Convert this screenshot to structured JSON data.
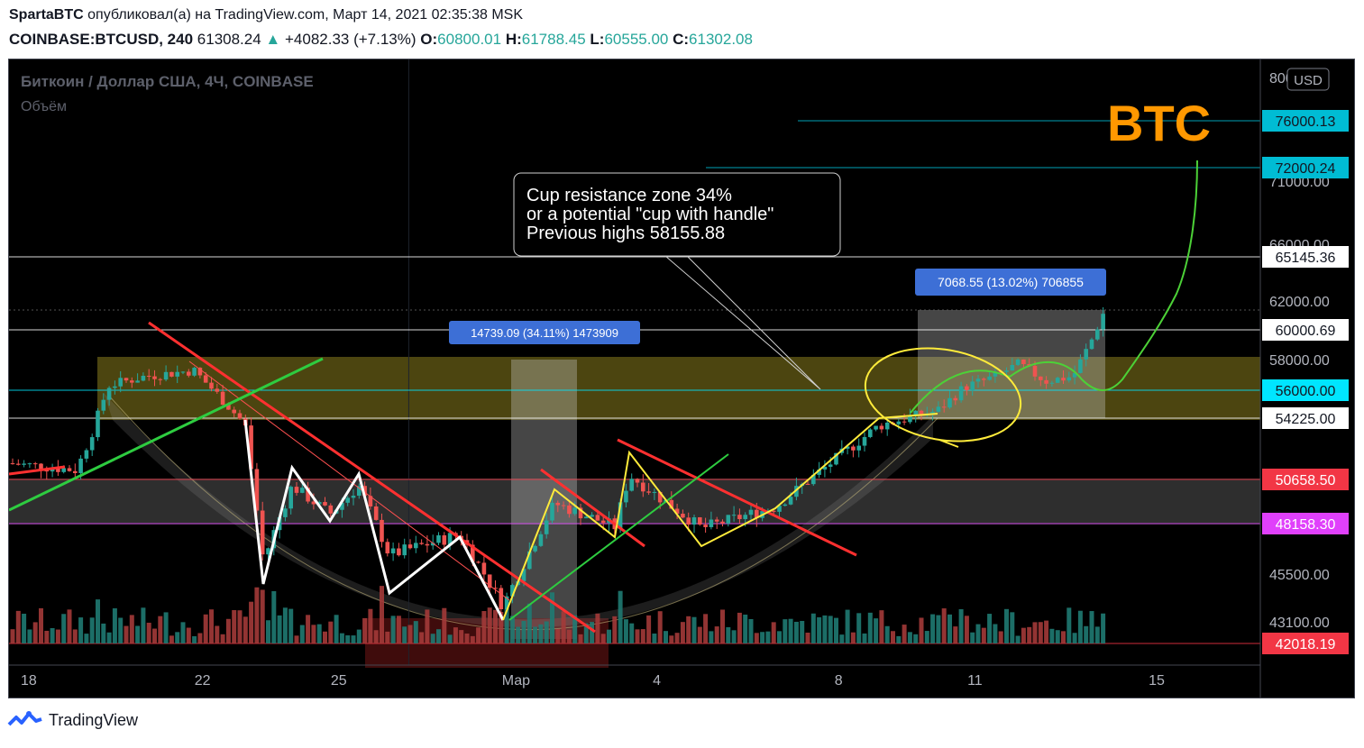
{
  "header": {
    "author": "SpartaBTC",
    "published_text": "опубликовал(а) на TradingView.com, Март 14, 2021 02:35:38 MSK",
    "symbol": "COINBASE:BTCUSD, 240",
    "price": "61308.24",
    "change": "+4082.33 (+7.13%)",
    "o_label": "O:",
    "o_value": "60800.01",
    "h_label": "H:",
    "h_value": "61788.45",
    "l_label": "L:",
    "l_value": "60555.00",
    "c_label": "C:",
    "c_value": "61302.08"
  },
  "chart_data": {
    "type": "candlestick",
    "title": "Биткоин / Доллар США, 4Ч, COINBASE",
    "subtitle": "Объём",
    "currency_label": "USD",
    "big_label": "BTC",
    "x_tick_labels": [
      {
        "label": "18",
        "day": 18
      },
      {
        "label": "22",
        "day": 22
      },
      {
        "label": "25",
        "day": 25
      },
      {
        "label": "Мар",
        "day": 29
      },
      {
        "label": "4",
        "day": 32
      },
      {
        "label": "8",
        "day": 36
      },
      {
        "label": "11",
        "day": 39
      },
      {
        "label": "15",
        "day": 43
      }
    ],
    "y_tick_labels": [
      "80000.00",
      "71000.00",
      "66000.00",
      "62000.00",
      "58000.00",
      "45500.00",
      "43100.00"
    ],
    "ylim": [
      40800,
      80000
    ],
    "price_levels": [
      {
        "label": "76000.13",
        "value": 76000.13,
        "color": "#00bcd4"
      },
      {
        "label": "72000.24",
        "value": 72000.24,
        "color": "#00bcd4"
      },
      {
        "label": "65145.36",
        "value": 65145.36,
        "color": "#ffffff"
      },
      {
        "label": "60000.69",
        "value": 60000.69,
        "color": "#ffffff"
      },
      {
        "label": "56000.00",
        "value": 56000.0,
        "color": "#00e5ff"
      },
      {
        "label": "54225.00",
        "value": 54225.0,
        "color": "#ffffff"
      },
      {
        "label": "50658.50",
        "value": 50658.5,
        "color": "#f23645"
      },
      {
        "label": "48158.30",
        "value": 48158.3,
        "color": "#e040fb"
      },
      {
        "label": "42018.19",
        "value": 42018.19,
        "color": "#f23645"
      }
    ],
    "measure_labels": [
      {
        "text": "14739.09 (34.11%) 1473909"
      },
      {
        "text": "7068.55 (13.02%) 706855"
      }
    ],
    "annotation": {
      "lines": [
        "Cup resistance zone 34%",
        "or a potential \"cup with handle\"",
        "Previous highs 58155.88"
      ]
    }
  },
  "footer": {
    "brand": "TradingView"
  }
}
